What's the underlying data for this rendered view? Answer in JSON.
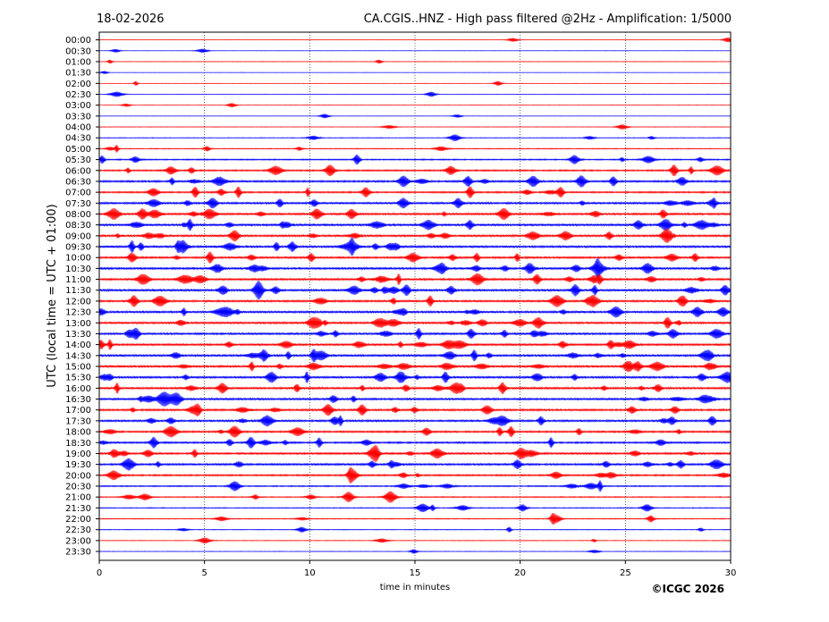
{
  "header": {
    "date": "18-02-2026",
    "title": "CA.CGIS..HNZ - High pass filtered @2Hz - Amplification: 1/5000"
  },
  "footer": {
    "copyright": "©ICGC 2026"
  },
  "colors": {
    "red_trace": "#ff0000",
    "blue_trace": "#0000ff",
    "axes": "#000000",
    "grid": "#000000"
  },
  "chart_data": {
    "type": "line",
    "title": "CA.CGIS..HNZ - High pass filtered @2Hz - Amplification: 1/5000",
    "xlabel": "time in minutes",
    "ylabel": "UTC (local time = UTC + 01:00)",
    "xlim": [
      0,
      30
    ],
    "x_ticks": [
      "0",
      "5",
      "10",
      "15",
      "20",
      "25",
      "30"
    ],
    "grid": "vertical dotted lines at 5-minute ticks",
    "trace_colors": [
      "red",
      "blue"
    ],
    "rows": [
      "00:00",
      "00:30",
      "01:00",
      "01:30",
      "02:00",
      "02:30",
      "03:00",
      "03:30",
      "04:00",
      "04:30",
      "05:00",
      "05:30",
      "06:00",
      "06:30",
      "07:00",
      "07:30",
      "08:00",
      "08:30",
      "09:00",
      "09:30",
      "10:00",
      "10:30",
      "11:00",
      "11:30",
      "12:00",
      "12:30",
      "13:00",
      "13:30",
      "14:00",
      "14:30",
      "15:00",
      "15:30",
      "16:00",
      "16:30",
      "17:00",
      "17:30",
      "18:00",
      "18:30",
      "19:00",
      "19:30",
      "20:00",
      "20:30",
      "21:00",
      "21:30",
      "22:00",
      "22:30",
      "23:00",
      "23:30"
    ],
    "noise_level": [
      0.3,
      0.3,
      0.4,
      0.2,
      0.3,
      0.3,
      0.3,
      0.3,
      0.4,
      0.6,
      0.8,
      1.2,
      1.5,
      1.9,
      1.6,
      2.0,
      2.2,
      2.4,
      2.2,
      2.3,
      2.0,
      2.3,
      2.3,
      2.4,
      2.0,
      2.2,
      2.2,
      2.1,
      2.2,
      2.3,
      2.4,
      2.1,
      2.2,
      2.1,
      2.0,
      2.0,
      1.8,
      1.8,
      2.0,
      2.0,
      1.6,
      1.2,
      1.0,
      0.8,
      0.8,
      0.6,
      0.5,
      0.4
    ]
  }
}
